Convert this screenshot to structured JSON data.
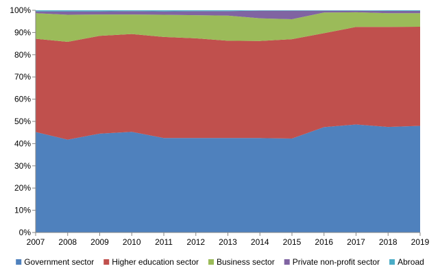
{
  "chart_data": {
    "type": "area",
    "stacked": true,
    "percent": true,
    "x": [
      2007,
      2008,
      2009,
      2010,
      2011,
      2012,
      2013,
      2014,
      2015,
      2016,
      2017,
      2018,
      2019
    ],
    "ylim": [
      0,
      100
    ],
    "yticks": [
      "0%",
      "10%",
      "20%",
      "30%",
      "40%",
      "50%",
      "60%",
      "70%",
      "80%",
      "90%",
      "100%"
    ],
    "grid": false,
    "legend": "bottom",
    "series": [
      {
        "name": "Government sector",
        "color": "#4F81BD",
        "values": [
          45.2,
          41.8,
          44.5,
          45.3,
          42.5,
          42.5,
          42.5,
          42.5,
          42.3,
          47.4,
          48.6,
          47.5,
          48.0
        ]
      },
      {
        "name": "Higher education sector",
        "color": "#C0504D",
        "values": [
          42.0,
          44.0,
          44.0,
          44.0,
          45.5,
          44.9,
          43.8,
          43.7,
          44.7,
          42.3,
          43.9,
          45.0,
          44.6
        ]
      },
      {
        "name": "Business sector",
        "color": "#9BBB59",
        "values": [
          11.5,
          12.2,
          9.6,
          8.8,
          10.0,
          10.4,
          11.3,
          10.2,
          9.0,
          9.3,
          6.6,
          6.2,
          6.1
        ]
      },
      {
        "name": "Private non-profit sector",
        "color": "#8064A2",
        "values": [
          0.8,
          1.5,
          1.4,
          1.5,
          1.5,
          1.8,
          2.0,
          3.4,
          3.8,
          0.8,
          0.7,
          1.0,
          1.0
        ]
      },
      {
        "name": "Abroad",
        "color": "#4BACC6",
        "values": [
          0.5,
          0.5,
          0.5,
          0.4,
          0.5,
          0.4,
          0.4,
          0.2,
          0.2,
          0.2,
          0.2,
          0.3,
          0.3
        ]
      }
    ]
  }
}
